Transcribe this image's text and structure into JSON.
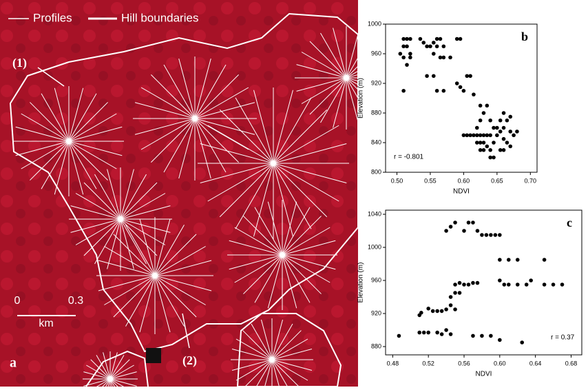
{
  "map": {
    "legend": [
      "Profiles",
      "Hill boundaries"
    ],
    "labels": [
      "(1)",
      "(2)"
    ],
    "scale": [
      "0",
      "0.3",
      "km"
    ],
    "panel": "a"
  },
  "chart_data": [
    {
      "type": "scatter",
      "panel": "b",
      "x_label": "NDVI",
      "y_label": "Elevation (m)",
      "annotation": "r = -0.801",
      "color": "#000000",
      "xlim": [
        0.483,
        0.71
      ],
      "ylim": [
        800,
        1000
      ],
      "xticks": [
        {
          "value": 0.5,
          "label": "0.50"
        },
        0.55,
        {
          "value": 0.6,
          "label": "0.60"
        },
        0.65,
        {
          "value": 0.7,
          "label": "0.70"
        }
      ],
      "yticks": [
        800,
        840,
        880,
        920,
        960,
        1000
      ],
      "x": [
        0.51,
        0.515,
        0.52,
        0.51,
        0.515,
        0.52,
        0.51,
        0.52,
        0.515,
        0.505,
        0.51,
        0.535,
        0.54,
        0.545,
        0.55,
        0.555,
        0.56,
        0.56,
        0.565,
        0.57,
        0.565,
        0.57,
        0.555,
        0.545,
        0.555,
        0.56,
        0.57,
        0.58,
        0.59,
        0.595,
        0.59,
        0.595,
        0.6,
        0.605,
        0.61,
        0.615,
        0.6,
        0.605,
        0.61,
        0.615,
        0.62,
        0.625,
        0.63,
        0.635,
        0.62,
        0.625,
        0.63,
        0.635,
        0.64,
        0.645,
        0.64,
        0.625,
        0.63,
        0.62,
        0.625,
        0.63,
        0.635,
        0.625,
        0.64,
        0.645,
        0.65,
        0.655,
        0.66,
        0.665,
        0.67,
        0.66,
        0.655,
        0.65,
        0.645,
        0.66,
        0.665,
        0.67,
        0.675,
        0.68,
        0.64,
        0.655,
        0.66,
        0.67
      ],
      "y": [
        980,
        980,
        980,
        970,
        970,
        960,
        955,
        955,
        945,
        960,
        910,
        980,
        975,
        970,
        970,
        975,
        970,
        980,
        980,
        970,
        955,
        955,
        960,
        930,
        930,
        910,
        910,
        955,
        980,
        980,
        920,
        915,
        910,
        930,
        930,
        905,
        850,
        850,
        850,
        850,
        850,
        850,
        850,
        850,
        840,
        840,
        840,
        835,
        830,
        820,
        820,
        830,
        830,
        860,
        870,
        880,
        890,
        890,
        870,
        860,
        860,
        855,
        860,
        870,
        875,
        880,
        870,
        850,
        840,
        845,
        840,
        835,
        850,
        855,
        850,
        830,
        830,
        855
      ]
    },
    {
      "type": "scatter",
      "panel": "c",
      "x_label": "NDVI",
      "y_label": "Elevation (m)",
      "annotation": "r = 0.37",
      "color": "#000000",
      "xlim": [
        0.472,
        0.692
      ],
      "ylim": [
        870,
        1045
      ],
      "xticks": [
        0.48,
        0.52,
        0.56,
        {
          "value": 0.6,
          "label": "0.60"
        },
        0.64,
        0.68
      ],
      "yticks": [
        880,
        920,
        960,
        1000,
        1040
      ],
      "x": [
        0.487,
        0.51,
        0.512,
        0.52,
        0.525,
        0.53,
        0.535,
        0.51,
        0.515,
        0.52,
        0.53,
        0.535,
        0.54,
        0.545,
        0.55,
        0.545,
        0.55,
        0.555,
        0.55,
        0.555,
        0.56,
        0.565,
        0.57,
        0.575,
        0.545,
        0.54,
        0.55,
        0.56,
        0.565,
        0.57,
        0.575,
        0.58,
        0.585,
        0.59,
        0.595,
        0.6,
        0.6,
        0.61,
        0.62,
        0.6,
        0.605,
        0.61,
        0.62,
        0.63,
        0.635,
        0.65,
        0.65,
        0.66,
        0.67,
        0.57,
        0.58,
        0.59,
        0.6,
        0.625,
        0.54,
        0.545
      ],
      "y": [
        893,
        918,
        921,
        926,
        923,
        923,
        923,
        897,
        897,
        897,
        897,
        895,
        900,
        895,
        925,
        940,
        945,
        945,
        955,
        957,
        955,
        955,
        957,
        957,
        1025,
        1020,
        1030,
        1020,
        1030,
        1030,
        1020,
        1015,
        1015,
        1015,
        1015,
        1015,
        985,
        985,
        985,
        960,
        955,
        955,
        955,
        955,
        960,
        985,
        955,
        955,
        955,
        893,
        893,
        893,
        888,
        885,
        925,
        930
      ]
    }
  ]
}
